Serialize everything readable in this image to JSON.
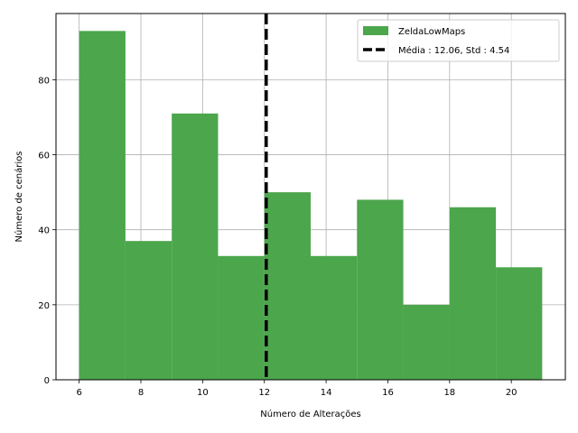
{
  "chart_data": {
    "type": "bar",
    "subtype": "histogram",
    "title": "",
    "xlabel": "Número de Alterações",
    "ylabel": "Número de cenários",
    "bin_edges": [
      6,
      7.5,
      9,
      10.5,
      12,
      13.5,
      15,
      16.5,
      18,
      19.5,
      21
    ],
    "series": [
      {
        "name": "ZeldaLowMaps",
        "values": [
          93,
          37,
          71,
          33,
          50,
          33,
          48,
          20,
          46,
          30
        ]
      }
    ],
    "vline": {
      "x": 12.06,
      "style": "dashed",
      "color": "#000000",
      "label": "Média : 12.06, Std : 4.54"
    },
    "xlim": [
      5.25,
      21.75
    ],
    "ylim": [
      0,
      97.65
    ],
    "xticks": [
      6,
      8,
      10,
      12,
      14,
      16,
      18,
      20
    ],
    "yticks": [
      0,
      20,
      40,
      60,
      80
    ],
    "grid": true,
    "legend_position": "top-right",
    "bar_color": "#4ca64c"
  }
}
